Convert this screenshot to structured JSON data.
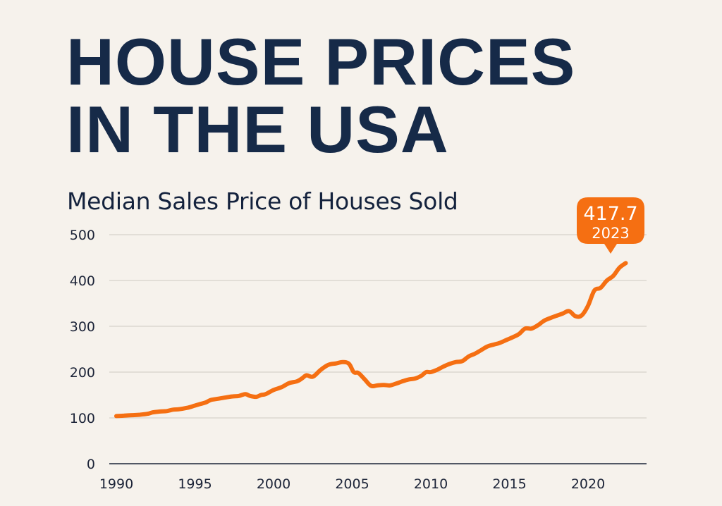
{
  "header": {
    "title_line1": "HOUSE PRICES",
    "title_line2": "IN THE USA",
    "subtitle": "Median Sales Price of Houses Sold"
  },
  "colors": {
    "background": "#f6f2ec",
    "title": "#162a48",
    "line": "#f56f12",
    "callout": "#f56f12",
    "grid": "#d6d2ca",
    "axis": "#1c2438"
  },
  "chart_data": {
    "type": "line",
    "title": "Median Sales Price of Houses Sold",
    "xlabel": "",
    "ylabel": "",
    "xlim": [
      1989.6,
      2024.0
    ],
    "ylim": [
      0,
      500
    ],
    "grid": true,
    "x_ticks": [
      "1990",
      "1995",
      "2000",
      "2005",
      "2010",
      "2015",
      "2020"
    ],
    "y_ticks": [
      "0",
      "100",
      "200",
      "300",
      "400",
      "500"
    ],
    "series": [
      {
        "name": "Median Sales Price",
        "x": [
          1990.0,
          1990.5,
          1991.0,
          1991.5,
          1992.0,
          1992.3,
          1992.8,
          1993.2,
          1993.6,
          1994.0,
          1994.5,
          1995.0,
          1995.3,
          1995.7,
          1996.0,
          1996.5,
          1997.0,
          1997.4,
          1997.8,
          1998.2,
          1998.5,
          1998.9,
          1999.2,
          1999.5,
          2000.0,
          2000.5,
          2001.0,
          2001.5,
          2001.8,
          2002.1,
          2002.5,
          2003.0,
          2003.5,
          2004.0,
          2004.4,
          2004.8,
          2005.1,
          2005.4,
          2005.8,
          2006.2,
          2006.6,
          2007.0,
          2007.4,
          2007.8,
          2008.2,
          2008.6,
          2009.0,
          2009.4,
          2009.7,
          2010.0,
          2010.4,
          2010.8,
          2011.2,
          2011.6,
          2012.0,
          2012.4,
          2012.8,
          2013.2,
          2013.6,
          2014.0,
          2014.4,
          2014.8,
          2015.2,
          2015.6,
          2016.0,
          2016.4,
          2016.8,
          2017.2,
          2017.6,
          2018.0,
          2018.4,
          2018.8,
          2019.2,
          2019.6,
          2020.0,
          2020.4,
          2020.8,
          2021.2,
          2021.6,
          2022.0,
          2022.4
        ],
        "values": [
          104,
          105,
          106,
          107,
          109,
          112,
          114,
          115,
          118,
          119,
          122,
          127,
          130,
          134,
          139,
          142,
          145,
          147,
          148,
          152,
          148,
          146,
          150,
          152,
          161,
          167,
          176,
          180,
          186,
          193,
          190,
          205,
          216,
          219,
          222,
          218,
          200,
          198,
          184,
          170,
          171,
          172,
          171,
          175,
          180,
          184,
          186,
          192,
          200,
          200,
          205,
          212,
          218,
          222,
          224,
          234,
          240,
          248,
          256,
          260,
          264,
          270,
          276,
          283,
          295,
          295,
          302,
          312,
          318,
          323,
          328,
          333,
          322,
          324,
          345,
          378,
          384,
          400,
          410,
          428,
          438
        ]
      }
    ],
    "annotations": [
      {
        "value": "417.7",
        "label": "2023"
      }
    ]
  }
}
